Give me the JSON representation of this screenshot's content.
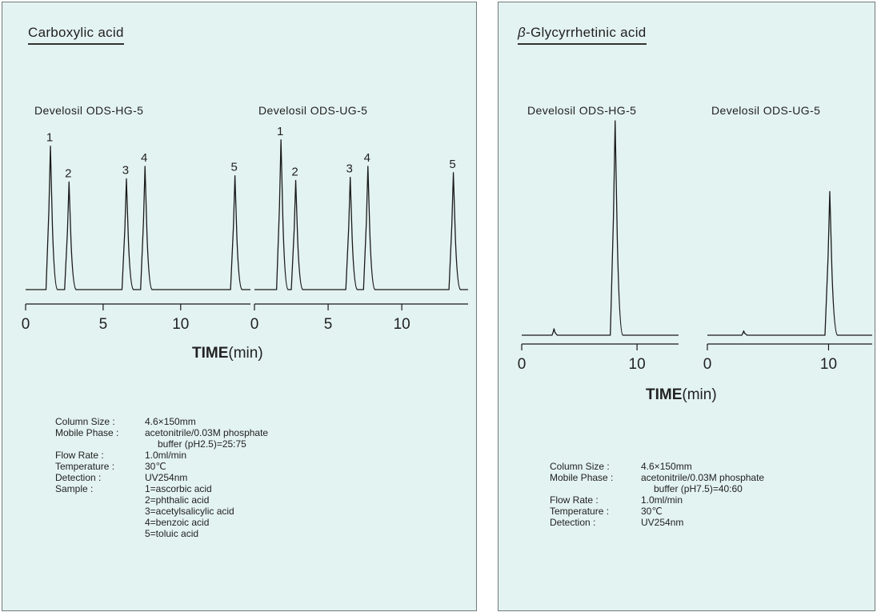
{
  "panels": [
    {
      "title": "Carboxylic acid",
      "columns": [
        "Develosil ODS-HG-5",
        "Develosil ODS-UG-5"
      ],
      "xlabel_bold": "TIME",
      "xlabel_unit": "(min)",
      "conditions": {
        "column_size_label": "Column Size :",
        "column_size": "4.6×150mm",
        "mobile_phase_label": "Mobile Phase :",
        "mobile_phase_1": "acetonitrile/0.03M phosphate",
        "mobile_phase_2": "buffer (pH2.5)=25:75",
        "flow_rate_label": "Flow Rate :",
        "flow_rate": "1.0ml/min",
        "temperature_label": "Temperature :",
        "temperature": "30℃",
        "detection_label": "Detection :",
        "detection": "UV254nm",
        "sample_label": "Sample :",
        "samples": [
          "1=ascorbic acid",
          "2=phthalic acid",
          "3=acetylsalicylic acid",
          "4=benzoic acid",
          "5=toluic acid"
        ]
      }
    },
    {
      "title": "-Glycyrrhetinic acid",
      "title_prefix": "β",
      "columns": [
        "Develosil ODS-HG-5",
        "Develosil ODS-UG-5"
      ],
      "xlabel_bold": "TIME",
      "xlabel_unit": "(min)",
      "conditions": {
        "column_size_label": "Column Size :",
        "column_size": "4.6×150mm",
        "mobile_phase_label": "Mobile Phase :",
        "mobile_phase_1": "acetonitrile/0.03M phosphate",
        "mobile_phase_2": "buffer (pH7.5)=40:60",
        "flow_rate_label": "Flow Rate :",
        "flow_rate": "1.0ml/min",
        "temperature_label": "Temperature :",
        "temperature": "30℃",
        "detection_label": "Detection :",
        "detection": "UV254nm"
      }
    }
  ],
  "chart_data": [
    {
      "type": "line",
      "title": "Carboxylic acid",
      "subtitle": "Develosil ODS-HG-5",
      "xlabel": "TIME(min)",
      "xlim": [
        0,
        14.5
      ],
      "ylim": [
        0,
        1
      ],
      "xticks": [
        "0",
        "5",
        "10"
      ],
      "grid": false,
      "peaks": [
        {
          "label": "1",
          "x": 1.6,
          "height": 0.92
        },
        {
          "label": "2",
          "x": 2.8,
          "height": 0.69
        },
        {
          "label": "3",
          "x": 6.5,
          "height": 0.71
        },
        {
          "label": "4",
          "x": 7.7,
          "height": 0.79
        },
        {
          "label": "5",
          "x": 13.5,
          "height": 0.73
        }
      ]
    },
    {
      "type": "line",
      "title": "Carboxylic acid",
      "subtitle": "Develosil ODS-UG-5",
      "xlabel": "TIME(min)",
      "xlim": [
        0,
        14.5
      ],
      "ylim": [
        0,
        1
      ],
      "xticks": [
        "0",
        "5",
        "10"
      ],
      "grid": false,
      "peaks": [
        {
          "label": "1",
          "x": 1.8,
          "height": 0.96
        },
        {
          "label": "2",
          "x": 2.8,
          "height": 0.7
        },
        {
          "label": "3",
          "x": 6.5,
          "height": 0.72
        },
        {
          "label": "4",
          "x": 7.7,
          "height": 0.79
        },
        {
          "label": "5",
          "x": 13.5,
          "height": 0.75
        }
      ]
    },
    {
      "type": "line",
      "title": "β-Glycyrrhetinic acid",
      "subtitle": "Develosil ODS-HG-5",
      "xlabel": "TIME(min)",
      "xlim": [
        0,
        13.6
      ],
      "ylim": [
        0,
        1
      ],
      "xticks": [
        "0",
        "10"
      ],
      "grid": false,
      "peaks": [
        {
          "x": 2.8,
          "height": 0.03
        },
        {
          "x": 8.1,
          "height": 1.0
        }
      ]
    },
    {
      "type": "line",
      "title": "β-Glycyrrhetinic acid",
      "subtitle": "Develosil ODS-UG-5",
      "xlabel": "TIME(min)",
      "xlim": [
        0,
        13.6
      ],
      "ylim": [
        0,
        1
      ],
      "xticks": [
        "0",
        "10"
      ],
      "grid": false,
      "peaks": [
        {
          "x": 3.0,
          "height": 0.02
        },
        {
          "x": 10.1,
          "height": 0.67
        }
      ]
    }
  ]
}
